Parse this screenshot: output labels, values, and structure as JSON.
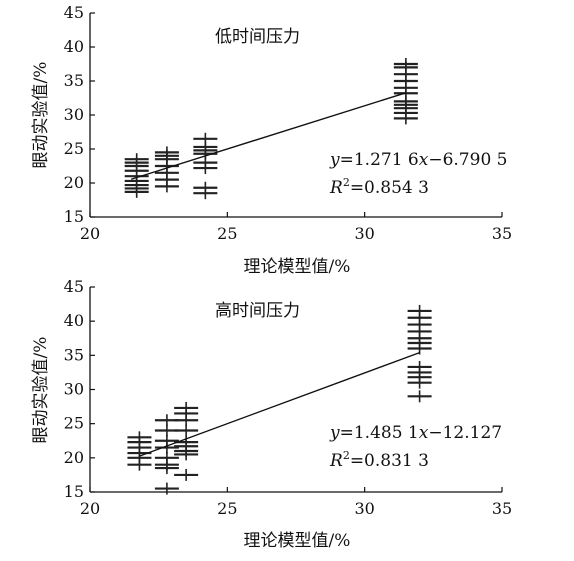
{
  "chart_data": [
    {
      "type": "scatter",
      "annotation": "低时间压力",
      "xlabel": "理论模型值/%",
      "ylabel": "眼动实验值/%",
      "xlim": [
        20,
        35
      ],
      "ylim": [
        15,
        45
      ],
      "xticks": [
        20,
        25,
        30,
        35
      ],
      "yticks": [
        15,
        20,
        25,
        30,
        35,
        40,
        45
      ],
      "grid": false,
      "marker": "plus",
      "equation": {
        "y": "y",
        "expr": "=1.271 6",
        "x": "x",
        "rest": "−6.790 5"
      },
      "r2": {
        "R": "R",
        "sup": "2",
        "val": "=0.854 3"
      },
      "fit": {
        "slope": 1.2716,
        "intercept": -6.7905,
        "x_start": 21.5,
        "x_end": 31.5
      },
      "points": [
        {
          "x": 21.7,
          "y": 18.7
        },
        {
          "x": 21.7,
          "y": 19.2
        },
        {
          "x": 21.7,
          "y": 19.7
        },
        {
          "x": 21.7,
          "y": 20.3
        },
        {
          "x": 21.7,
          "y": 21.0
        },
        {
          "x": 21.7,
          "y": 21.8
        },
        {
          "x": 21.7,
          "y": 22.5
        },
        {
          "x": 21.7,
          "y": 23.0
        },
        {
          "x": 21.7,
          "y": 23.5
        },
        {
          "x": 22.8,
          "y": 19.5
        },
        {
          "x": 22.8,
          "y": 20.5
        },
        {
          "x": 22.8,
          "y": 21.5
        },
        {
          "x": 22.8,
          "y": 22.5
        },
        {
          "x": 22.8,
          "y": 23.5
        },
        {
          "x": 22.8,
          "y": 24.0
        },
        {
          "x": 22.8,
          "y": 24.5
        },
        {
          "x": 24.2,
          "y": 18.5
        },
        {
          "x": 24.2,
          "y": 19.3
        },
        {
          "x": 24.2,
          "y": 22.2
        },
        {
          "x": 24.2,
          "y": 23.0
        },
        {
          "x": 24.2,
          "y": 24.3
        },
        {
          "x": 24.2,
          "y": 24.8
        },
        {
          "x": 24.2,
          "y": 25.3
        },
        {
          "x": 24.2,
          "y": 26.5
        },
        {
          "x": 31.5,
          "y": 29.5
        },
        {
          "x": 31.5,
          "y": 30.3
        },
        {
          "x": 31.5,
          "y": 31.0
        },
        {
          "x": 31.5,
          "y": 31.5
        },
        {
          "x": 31.5,
          "y": 32.0
        },
        {
          "x": 31.5,
          "y": 33.2
        },
        {
          "x": 31.5,
          "y": 34.0
        },
        {
          "x": 31.5,
          "y": 35.0
        },
        {
          "x": 31.5,
          "y": 36.0
        },
        {
          "x": 31.5,
          "y": 37.0
        },
        {
          "x": 31.5,
          "y": 37.5
        }
      ]
    },
    {
      "type": "scatter",
      "annotation": "高时间压力",
      "xlabel": "理论模型值/%",
      "ylabel": "眼动实验值/%",
      "xlim": [
        20,
        35
      ],
      "ylim": [
        15,
        45
      ],
      "xticks": [
        20,
        25,
        30,
        35
      ],
      "yticks": [
        15,
        20,
        25,
        30,
        35,
        40,
        45
      ],
      "grid": false,
      "marker": "plus",
      "equation": {
        "y": "y",
        "expr": "=1.485 1",
        "x": "x",
        "rest": "−12.127"
      },
      "r2": {
        "R": "R",
        "sup": "2",
        "val": "=0.831 3"
      },
      "fit": {
        "slope": 1.4851,
        "intercept": -12.127,
        "x_start": 21.8,
        "x_end": 32.0
      },
      "points": [
        {
          "x": 21.8,
          "y": 19.0
        },
        {
          "x": 21.8,
          "y": 20.0
        },
        {
          "x": 21.8,
          "y": 20.7
        },
        {
          "x": 21.8,
          "y": 21.5
        },
        {
          "x": 21.8,
          "y": 22.3
        },
        {
          "x": 21.8,
          "y": 23.0
        },
        {
          "x": 22.8,
          "y": 15.5
        },
        {
          "x": 22.8,
          "y": 18.5
        },
        {
          "x": 22.8,
          "y": 19.0
        },
        {
          "x": 22.8,
          "y": 20.0
        },
        {
          "x": 22.8,
          "y": 21.5
        },
        {
          "x": 22.8,
          "y": 22.5
        },
        {
          "x": 22.8,
          "y": 24.0
        },
        {
          "x": 22.8,
          "y": 25.5
        },
        {
          "x": 23.5,
          "y": 17.5
        },
        {
          "x": 23.5,
          "y": 20.5
        },
        {
          "x": 23.5,
          "y": 21.0
        },
        {
          "x": 23.5,
          "y": 21.7
        },
        {
          "x": 23.5,
          "y": 22.3
        },
        {
          "x": 23.5,
          "y": 24.0
        },
        {
          "x": 23.5,
          "y": 25.5
        },
        {
          "x": 23.5,
          "y": 26.5
        },
        {
          "x": 23.5,
          "y": 27.3
        },
        {
          "x": 32.0,
          "y": 29.0
        },
        {
          "x": 32.0,
          "y": 31.0
        },
        {
          "x": 32.0,
          "y": 31.8
        },
        {
          "x": 32.0,
          "y": 32.5
        },
        {
          "x": 32.0,
          "y": 33.3
        },
        {
          "x": 32.0,
          "y": 36.0
        },
        {
          "x": 32.0,
          "y": 36.8
        },
        {
          "x": 32.0,
          "y": 37.5
        },
        {
          "x": 32.0,
          "y": 38.5
        },
        {
          "x": 32.0,
          "y": 39.5
        },
        {
          "x": 32.0,
          "y": 40.5
        },
        {
          "x": 32.0,
          "y": 41.5
        }
      ]
    }
  ]
}
